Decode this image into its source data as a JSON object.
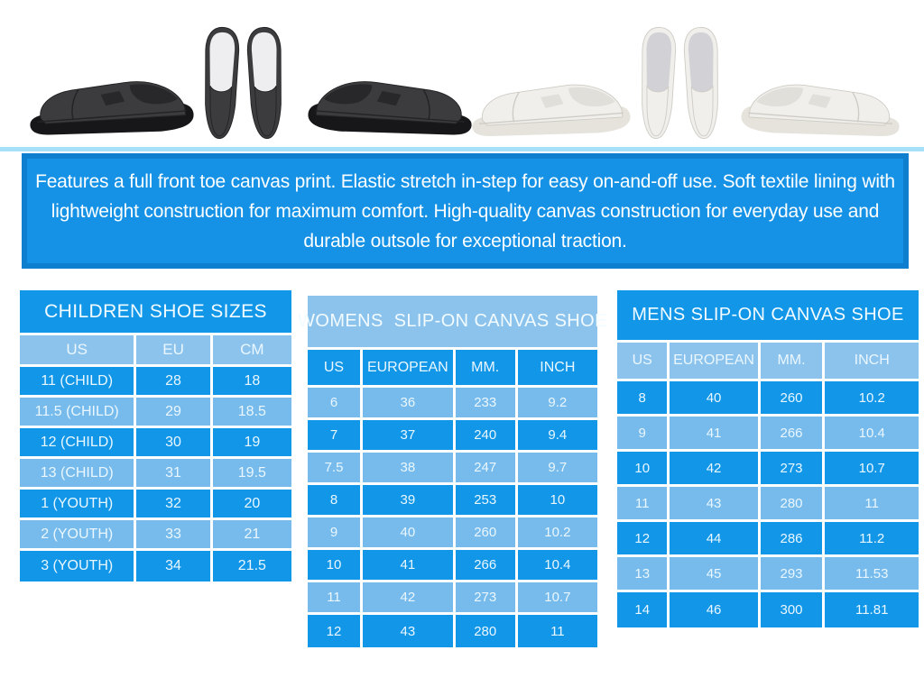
{
  "colors": {
    "blue_dark": "#1196e8",
    "blue_light": "#76bbec",
    "blue_header": "#8cc3ed",
    "banner_blue": "#1592e5",
    "banner_border": "#0e7fce",
    "highlight_cyan": "#a5e0f8",
    "table_text": "#eaf7ff",
    "page_background": "#ffffff"
  },
  "photo_strip": {
    "photos": [
      {
        "name": "black-slip-on-side-view-toe-left"
      },
      {
        "name": "black-slip-on-top-view-pair"
      },
      {
        "name": "black-slip-on-side-view-toe-right"
      },
      {
        "name": "white-slip-on-side-view-toe-left"
      },
      {
        "name": "white-slip-on-top-view-pair"
      },
      {
        "name": "white-slip-on-side-view-toe-right"
      }
    ]
  },
  "banner": {
    "text": "Features a full front toe canvas print. Elastic stretch in-step for easy on-and-off use. Soft textile lining with lightweight construction for maximum comfort. High-quality canvas construction for everyday use and durable outsole for exceptional traction."
  },
  "children_table": {
    "title": "CHILDREN SHOE SIZES",
    "columns": [
      "US",
      "EU",
      "CM"
    ],
    "rows": [
      [
        "11 (CHILD)",
        "28",
        "18"
      ],
      [
        "11.5 (CHILD)",
        "29",
        "18.5"
      ],
      [
        "12 (CHILD)",
        "30",
        "19"
      ],
      [
        "13 (CHILD)",
        "31",
        "19.5"
      ],
      [
        "1 (YOUTH)",
        "32",
        "20"
      ],
      [
        "2 (YOUTH)",
        "33",
        "21"
      ],
      [
        "3 (YOUTH)",
        "34",
        "21.5"
      ]
    ]
  },
  "womens_table": {
    "title": "WOMENS  SLIP-ON CANVAS SHOE",
    "columns": [
      "US",
      "EUROPEAN",
      "MM.",
      "INCH"
    ],
    "rows": [
      [
        "6",
        "36",
        "233",
        "9.2"
      ],
      [
        "7",
        "37",
        "240",
        "9.4"
      ],
      [
        "7.5",
        "38",
        "247",
        "9.7"
      ],
      [
        "8",
        "39",
        "253",
        "10"
      ],
      [
        "9",
        "40",
        "260",
        "10.2"
      ],
      [
        "10",
        "41",
        "266",
        "10.4"
      ],
      [
        "11",
        "42",
        "273",
        "10.7"
      ],
      [
        "12",
        "43",
        "280",
        "11"
      ]
    ]
  },
  "mens_table": {
    "title": "MENS SLIP-ON CANVAS SHOE",
    "columns": [
      "US",
      "EUROPEAN",
      "MM.",
      "INCH"
    ],
    "rows": [
      [
        "8",
        "40",
        "260",
        "10.2"
      ],
      [
        "9",
        "41",
        "266",
        "10.4"
      ],
      [
        "10",
        "42",
        "273",
        "10.7"
      ],
      [
        "11",
        "43",
        "280",
        "11"
      ],
      [
        "12",
        "44",
        "286",
        "11.2"
      ],
      [
        "13",
        "45",
        "293",
        "11.53"
      ],
      [
        "14",
        "46",
        "300",
        "11.81"
      ]
    ]
  }
}
